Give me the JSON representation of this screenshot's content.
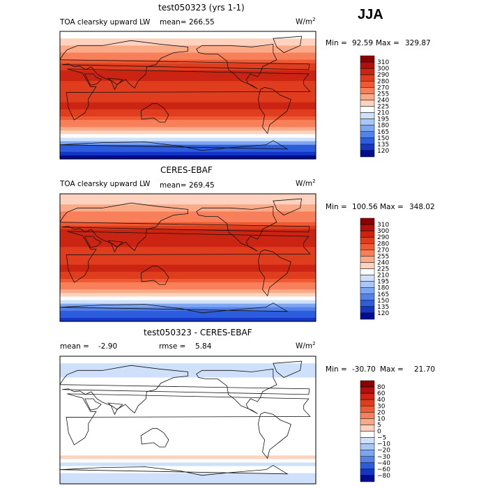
{
  "season": "JJA",
  "units_base": "W/m",
  "units_exp": "2",
  "panels": [
    {
      "title": "test050323 (yrs 1-1)",
      "variable": "TOA clearsky upward LW",
      "mean_label": "mean=",
      "mean": "266.55",
      "min_label": "Min =",
      "min": "92.59",
      "max_label": "Max =",
      "max": "329.87"
    },
    {
      "title": "CERES-EBAF",
      "variable": "TOA clearsky upward LW",
      "mean_label": "mean=",
      "mean": "269.45",
      "min_label": "Min =",
      "min": "100.56",
      "max_label": "Max =",
      "max": "348.02"
    },
    {
      "title": "test050323 - CERES-EBAF",
      "mean_label": "mean =",
      "mean": "-2.90",
      "rmse_label": "rmse =",
      "rmse": "5.84",
      "min_label": "Min =",
      "min": "-30.70",
      "max_label": "Max =",
      "max": "21.70"
    }
  ],
  "chart_data": [
    {
      "type": "heatmap",
      "title": "test050323 (yrs 1-1)",
      "subtitle": "TOA clearsky upward LW",
      "units": "W/m2",
      "mean": 266.55,
      "min": 92.59,
      "max": 329.87,
      "colorbar_levels": [
        310,
        300,
        290,
        280,
        270,
        255,
        240,
        225,
        210,
        195,
        180,
        165,
        150,
        135,
        120
      ],
      "colorbar_colors": [
        "#8b0000",
        "#b2100e",
        "#cc2413",
        "#e03c1e",
        "#ef5a32",
        "#f7805a",
        "#fbaa88",
        "#fdd3c0",
        "#ffffff",
        "#cfe0fb",
        "#a8c7f7",
        "#7ea6f0",
        "#5582e8",
        "#2d5ddf",
        "#1436c8",
        "#000c8f"
      ],
      "lat_profile": [
        {
          "lat": 90,
          "value": 215
        },
        {
          "lat": 70,
          "value": 240
        },
        {
          "lat": 50,
          "value": 270
        },
        {
          "lat": 30,
          "value": 300
        },
        {
          "lat": 15,
          "value": 285
        },
        {
          "lat": 0,
          "value": 280
        },
        {
          "lat": -15,
          "value": 292
        },
        {
          "lat": -30,
          "value": 280
        },
        {
          "lat": -45,
          "value": 250
        },
        {
          "lat": -55,
          "value": 230
        },
        {
          "lat": -62,
          "value": 200
        },
        {
          "lat": -70,
          "value": 150
        },
        {
          "lat": -90,
          "value": 115
        }
      ]
    },
    {
      "type": "heatmap",
      "title": "CERES-EBAF",
      "subtitle": "TOA clearsky upward LW",
      "units": "W/m2",
      "mean": 269.45,
      "min": 100.56,
      "max": 348.02,
      "colorbar_levels": [
        310,
        300,
        290,
        280,
        270,
        255,
        240,
        225,
        210,
        195,
        180,
        165,
        150,
        135,
        120
      ],
      "colorbar_colors": [
        "#8b0000",
        "#b2100e",
        "#cc2413",
        "#e03c1e",
        "#ef5a32",
        "#f7805a",
        "#fbaa88",
        "#fdd3c0",
        "#ffffff",
        "#cfe0fb",
        "#a8c7f7",
        "#7ea6f0",
        "#5582e8",
        "#2d5ddf",
        "#1436c8",
        "#000c8f"
      ],
      "lat_profile": [
        {
          "lat": 90,
          "value": 225
        },
        {
          "lat": 70,
          "value": 245
        },
        {
          "lat": 50,
          "value": 272
        },
        {
          "lat": 30,
          "value": 302
        },
        {
          "lat": 15,
          "value": 288
        },
        {
          "lat": 0,
          "value": 282
        },
        {
          "lat": -15,
          "value": 294
        },
        {
          "lat": -30,
          "value": 282
        },
        {
          "lat": -45,
          "value": 252
        },
        {
          "lat": -55,
          "value": 232
        },
        {
          "lat": -62,
          "value": 205
        },
        {
          "lat": -70,
          "value": 160
        },
        {
          "lat": -90,
          "value": 125
        }
      ]
    },
    {
      "type": "heatmap",
      "title": "test050323 - CERES-EBAF",
      "units": "W/m2",
      "mean": -2.9,
      "rmse": 5.84,
      "min": -30.7,
      "max": 21.7,
      "colorbar_levels": [
        80,
        60,
        40,
        30,
        20,
        10,
        5,
        0,
        -5,
        -10,
        -20,
        -30,
        -40,
        -60,
        -80
      ],
      "colorbar_colors": [
        "#8b0000",
        "#b2100e",
        "#cc2413",
        "#e03c1e",
        "#ef5a32",
        "#f7805a",
        "#fbaa88",
        "#fdd3c0",
        "#ffffff",
        "#cfe0fb",
        "#a8c7f7",
        "#7ea6f0",
        "#5582e8",
        "#2d5ddf",
        "#1436c8",
        "#000c8f"
      ],
      "lat_profile": [
        {
          "lat": 90,
          "value": -4
        },
        {
          "lat": 70,
          "value": -6
        },
        {
          "lat": 50,
          "value": -4
        },
        {
          "lat": 30,
          "value": -3
        },
        {
          "lat": 15,
          "value": -2
        },
        {
          "lat": 0,
          "value": -3
        },
        {
          "lat": -15,
          "value": -1
        },
        {
          "lat": -30,
          "value": -3
        },
        {
          "lat": -45,
          "value": -4
        },
        {
          "lat": -55,
          "value": 2
        },
        {
          "lat": -62,
          "value": -6
        },
        {
          "lat": -70,
          "value": -4
        },
        {
          "lat": -90,
          "value": -8
        }
      ]
    }
  ]
}
